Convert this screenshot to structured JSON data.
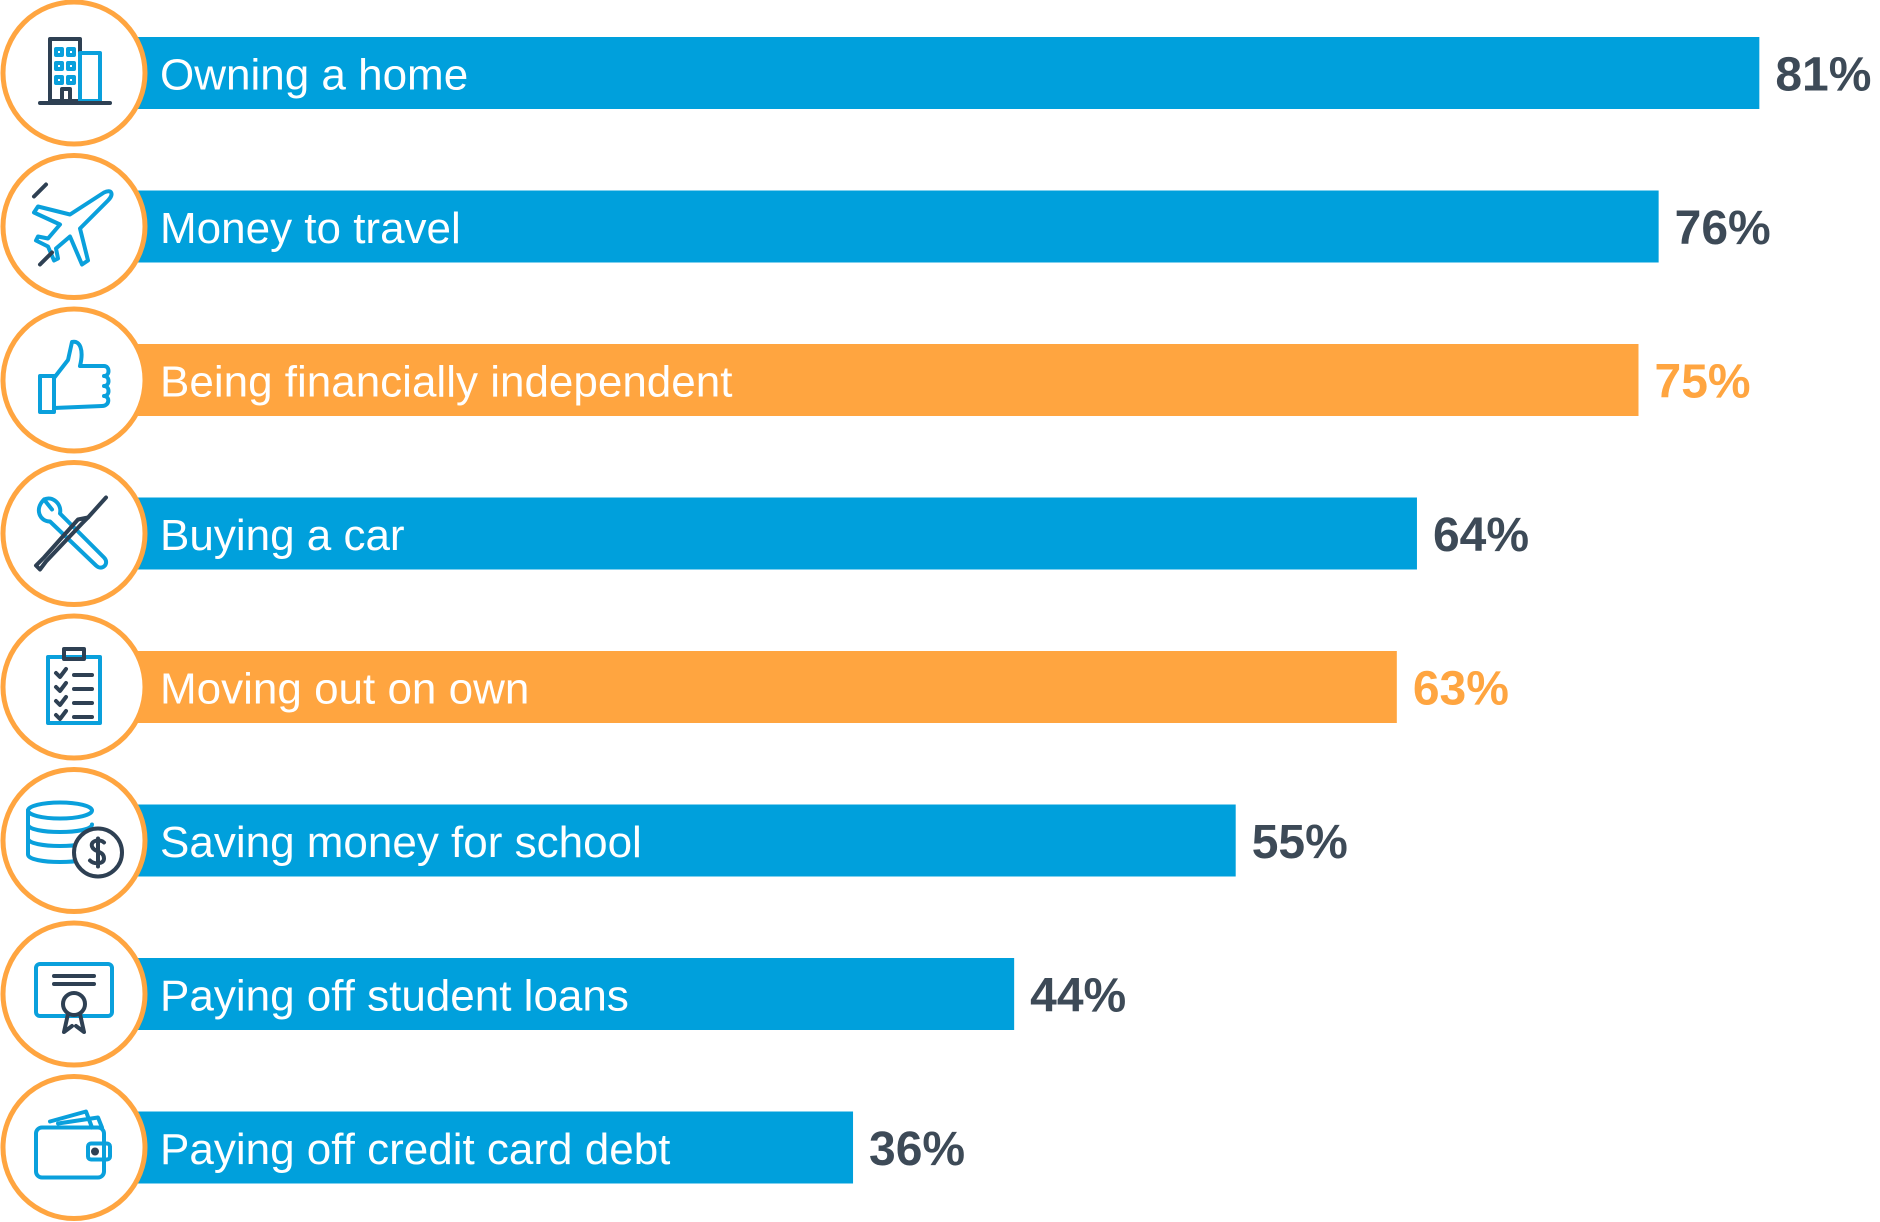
{
  "chart_data": {
    "type": "bar",
    "orientation": "horizontal",
    "categories": [
      "Owning a home",
      "Money to travel",
      "Being financially independent",
      "Buying a car",
      "Moving out on own",
      "Saving money for school",
      "Paying off student loans",
      "Paying off credit card debt"
    ],
    "values": [
      81,
      76,
      75,
      64,
      63,
      55,
      44,
      36
    ],
    "value_labels": [
      "81%",
      "76%",
      "75%",
      "64%",
      "63%",
      "55%",
      "44%",
      "36%"
    ],
    "colors": [
      "#00a0dc",
      "#00a0dc",
      "#ffa540",
      "#00a0dc",
      "#ffa540",
      "#00a0dc",
      "#00a0dc",
      "#00a0dc"
    ],
    "value_label_colors": [
      "#3d4a57",
      "#3d4a57",
      "#ffa540",
      "#3d4a57",
      "#ffa540",
      "#3d4a57",
      "#3d4a57",
      "#3d4a57"
    ]
  }
}
